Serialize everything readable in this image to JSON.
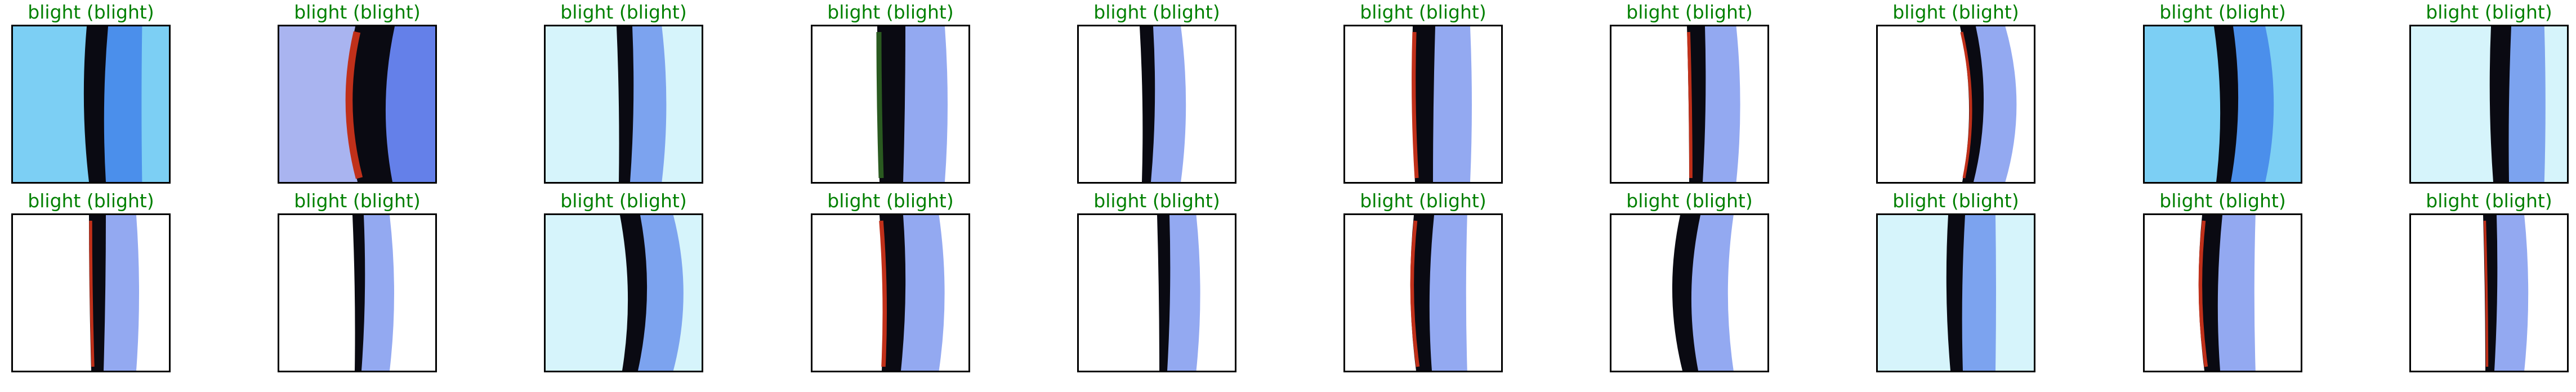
{
  "figure": {
    "cells": [
      {
        "title": "blight (blight)",
        "background": "sky-blue",
        "leaf": "dark-stem"
      },
      {
        "title": "blight (blight)",
        "background": "periwinkle",
        "leaf": "dark-stem-red"
      },
      {
        "title": "blight (blight)",
        "background": "cyan-white",
        "leaf": "dark-stem"
      },
      {
        "title": "blight (blight)",
        "background": "white",
        "leaf": "dark-stem-green"
      },
      {
        "title": "blight (blight)",
        "background": "white",
        "leaf": "dark-stem"
      },
      {
        "title": "blight (blight)",
        "background": "white",
        "leaf": "dark-stem-red"
      },
      {
        "title": "blight (blight)",
        "background": "white",
        "leaf": "dark-stem-red"
      },
      {
        "title": "blight (blight)",
        "background": "white",
        "leaf": "dark-stem-red"
      },
      {
        "title": "blight (blight)",
        "background": "sky-blue",
        "leaf": "dark-stem"
      },
      {
        "title": "blight (blight)",
        "background": "cyan-white",
        "leaf": "dark-stem"
      },
      {
        "title": "blight (blight)",
        "background": "white",
        "leaf": "dark-stem-red"
      },
      {
        "title": "blight (blight)",
        "background": "white",
        "leaf": "dark-stem"
      },
      {
        "title": "blight (blight)",
        "background": "cyan-white",
        "leaf": "dark-stem"
      },
      {
        "title": "blight (blight)",
        "background": "white",
        "leaf": "dark-stem-red"
      },
      {
        "title": "blight (blight)",
        "background": "white",
        "leaf": "dark-stem"
      },
      {
        "title": "blight (blight)",
        "background": "white",
        "leaf": "dark-stem-red"
      },
      {
        "title": "blight (blight)",
        "background": "white",
        "leaf": "dark-stem"
      },
      {
        "title": "blight (blight)",
        "background": "cyan-white",
        "leaf": "dark-stem"
      },
      {
        "title": "blight (blight)",
        "background": "white",
        "leaf": "dark-stem-red"
      },
      {
        "title": "blight (blight)",
        "background": "white",
        "leaf": "dark-stem-red"
      }
    ],
    "colors": {
      "title": "#008000",
      "frame": "#000000",
      "stem": "#0a0a12",
      "stem_highlight": "#c0301a",
      "stem_green": "#2a5a20",
      "shadow": "#1040e0",
      "sky-blue": "#7ccff4",
      "periwinkle": "#a9b4f0",
      "cyan-white": "#d6f4fb",
      "white": "#ffffff"
    }
  }
}
